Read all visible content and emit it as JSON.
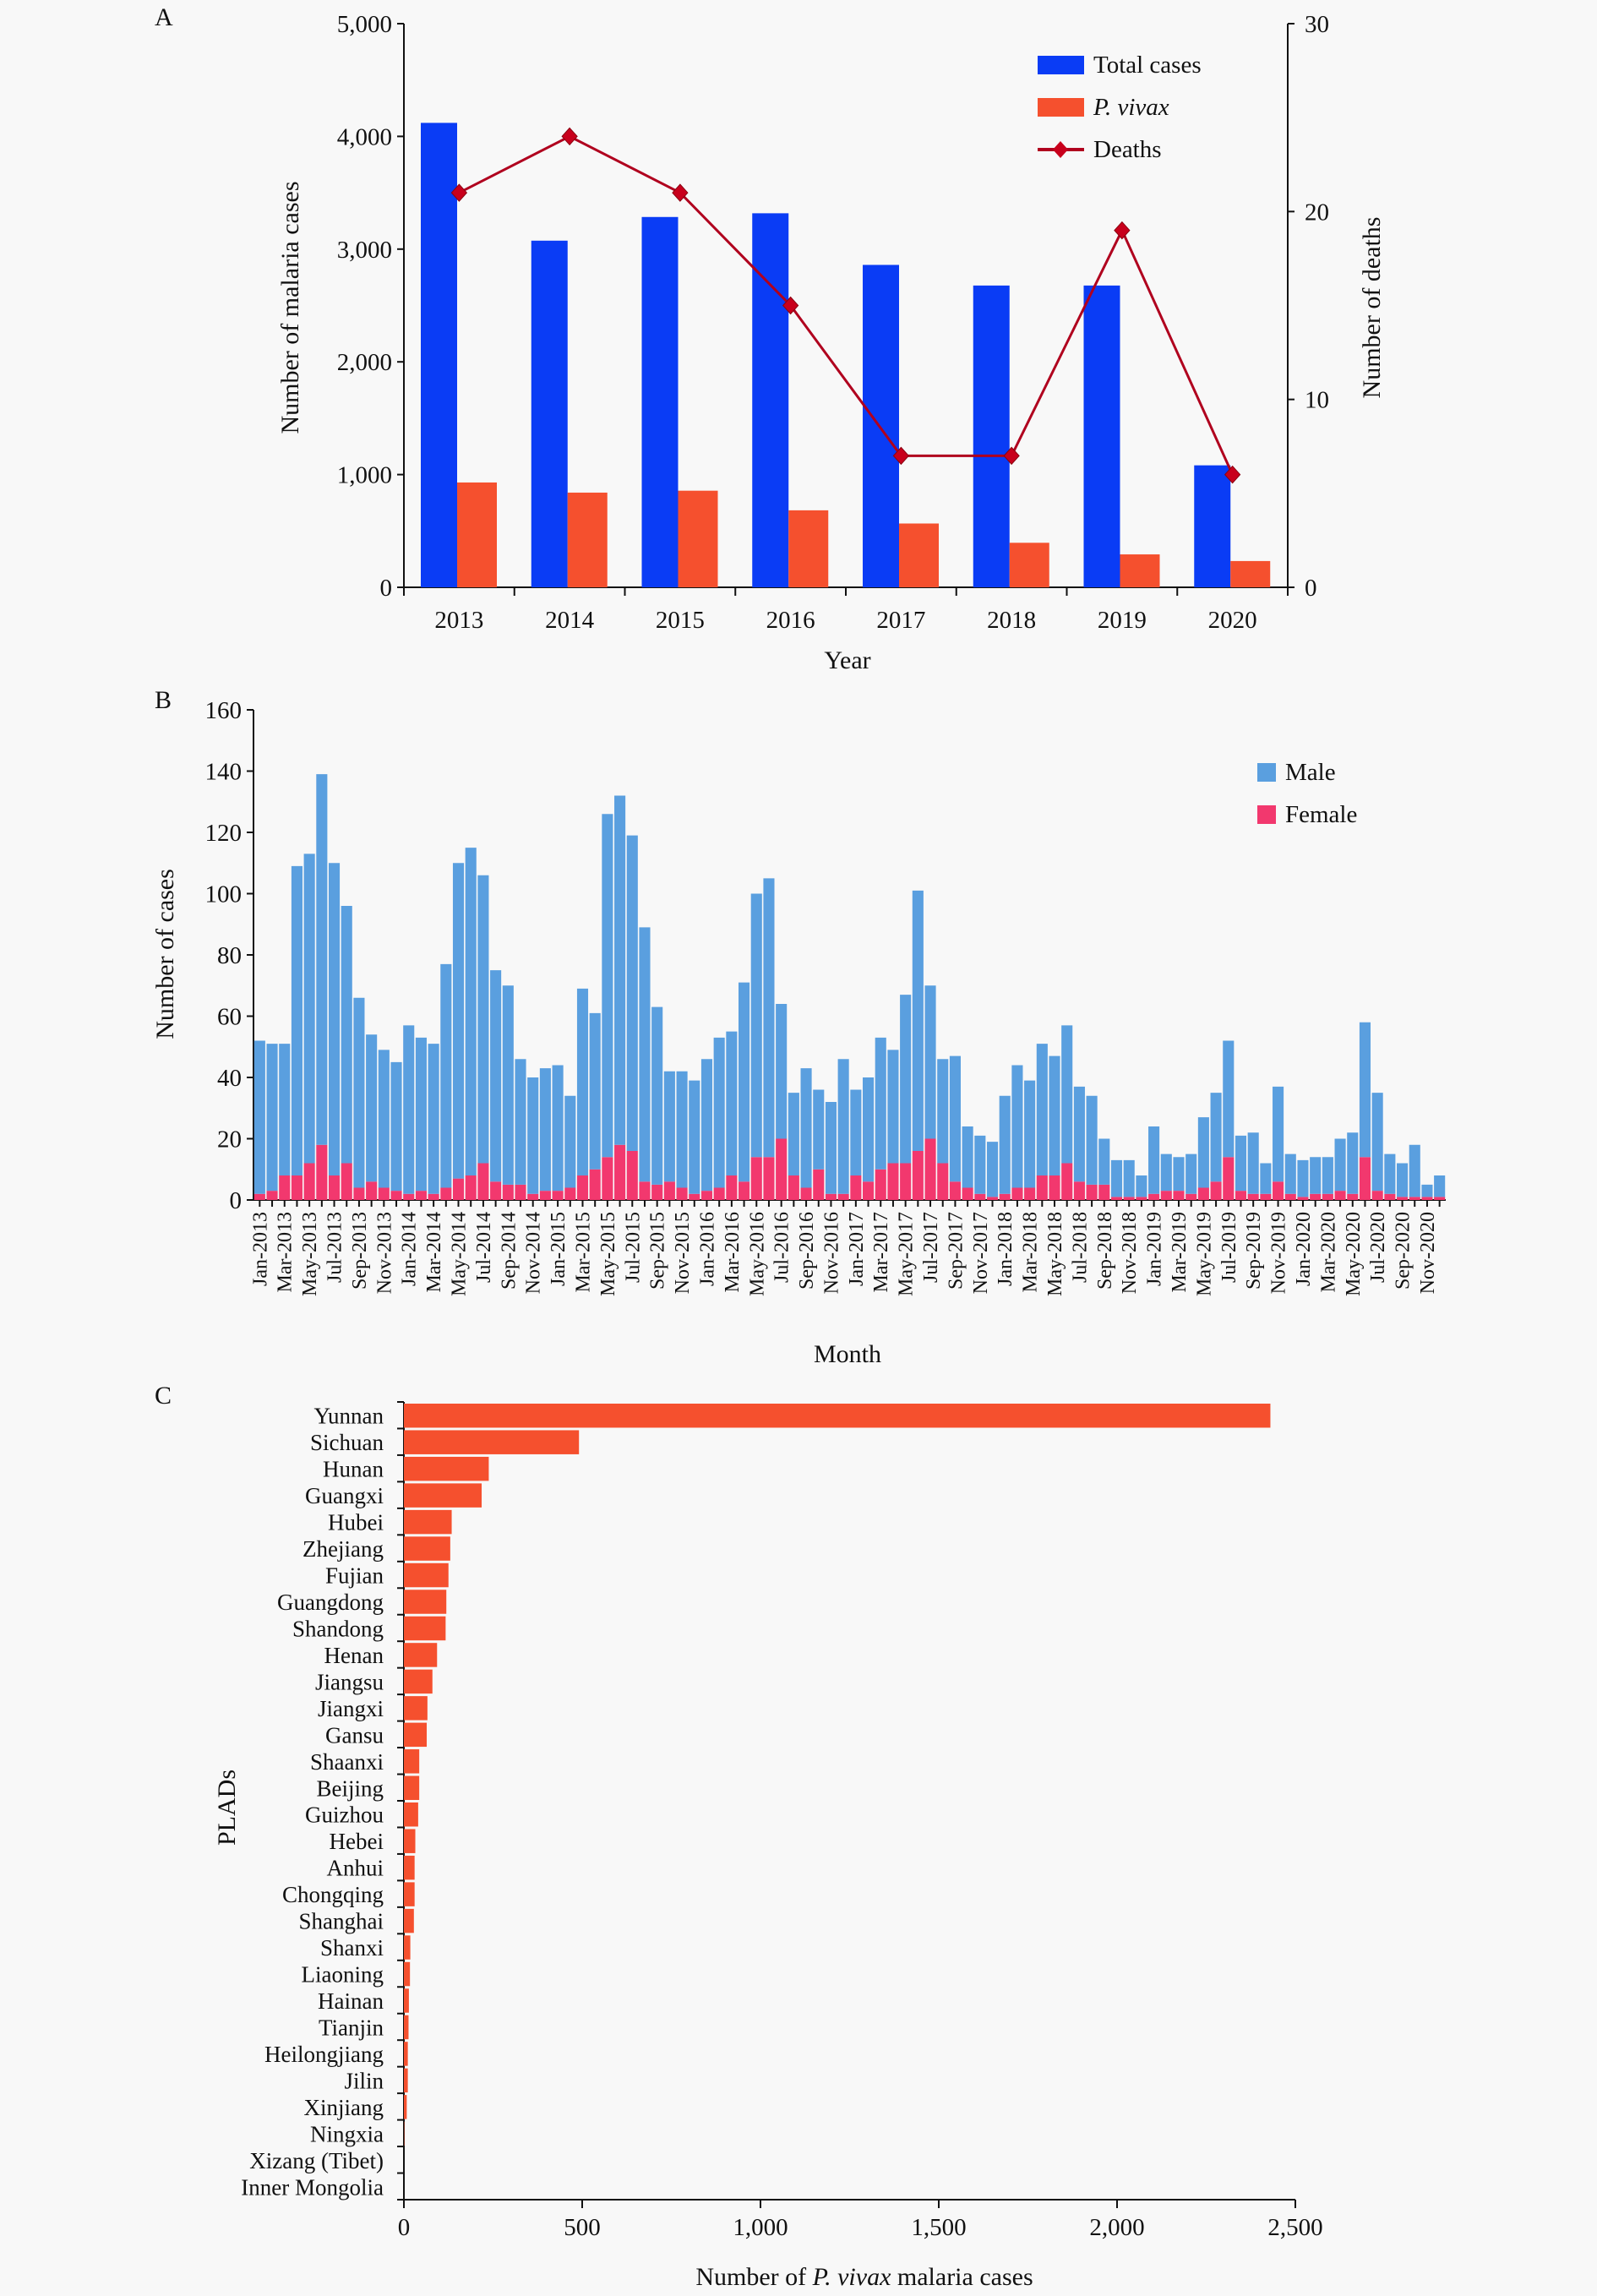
{
  "chart_data": [
    {
      "panel_label": "A",
      "type": "bar+line",
      "categories": [
        "2013",
        "2014",
        "2015",
        "2016",
        "2017",
        "2018",
        "2019",
        "2020"
      ],
      "xlabel": "Year",
      "ylabel": "Number of malaria cases",
      "ylabel_right": "Number of deaths",
      "ylim": [
        0,
        5000
      ],
      "ylim_right": [
        0,
        30
      ],
      "y_ticks": [
        "0",
        "1,000",
        "2,000",
        "3,000",
        "4,000",
        "5,000"
      ],
      "y_ticks_right": [
        "0",
        "10",
        "20",
        "30"
      ],
      "legend_position": "top-right",
      "series": [
        {
          "name": "Total cases",
          "type": "bar",
          "axis": "left",
          "color": "#0a3cf5",
          "values": [
            4120,
            3075,
            3285,
            3318,
            2860,
            2677,
            2677,
            1082
          ]
        },
        {
          "name": "P. vivax",
          "type": "bar",
          "axis": "left",
          "color": "#f5502e",
          "italic": true,
          "values": [
            930,
            840,
            857,
            683,
            566,
            395,
            292,
            233
          ]
        },
        {
          "name": "Deaths",
          "type": "line",
          "axis": "right",
          "color": "#b0001e",
          "marker": "diamond",
          "values": [
            21,
            24,
            21,
            15,
            7,
            7,
            19,
            6
          ]
        }
      ]
    },
    {
      "panel_label": "B",
      "type": "stacked-bar",
      "xlabel": "Month",
      "ylabel": "Number of cases",
      "ylim": [
        0,
        160
      ],
      "y_ticks": [
        "0",
        "20",
        "40",
        "60",
        "80",
        "100",
        "120",
        "140",
        "160"
      ],
      "x_tick_labels": [
        "Jan-2013",
        "Mar-2013",
        "May-2013",
        "Jul-2013",
        "Sep-2013",
        "Nov-2013",
        "Jan-2014",
        "Mar-2014",
        "May-2014",
        "Jul-2014",
        "Sep-2014",
        "Nov-2014",
        "Jan-2015",
        "Mar-2015",
        "May-2015",
        "Jul-2015",
        "Sep-2015",
        "Nov-2015",
        "Jan-2016",
        "Mar-2016",
        "May-2016",
        "Jul-2016",
        "Sep-2016",
        "Nov-2016",
        "Jan-2017",
        "Mar-2017",
        "May-2017",
        "Jul-2017",
        "Sep-2017",
        "Nov-2017",
        "Jan-2018",
        "Mar-2018",
        "May-2018",
        "Jul-2018",
        "Sep-2018",
        "Nov-2018",
        "Jan-2019",
        "Mar-2019",
        "May-2019",
        "Jul-2019",
        "Sep-2019",
        "Nov-2019",
        "Jan-2020",
        "Mar-2020",
        "May-2020",
        "Jul-2020",
        "Sep-2020",
        "Nov-2020"
      ],
      "legend_position": "top-right",
      "series": [
        {
          "name": "Male",
          "color": "#5a9fdf",
          "values": [
            50,
            48,
            43,
            101,
            101,
            121,
            102,
            84,
            62,
            48,
            45,
            42,
            55,
            50,
            49,
            73,
            103,
            107,
            94,
            69,
            65,
            41,
            38,
            40,
            41,
            30,
            61,
            51,
            112,
            114,
            103,
            83,
            58,
            36,
            38,
            37,
            43,
            49,
            47,
            65,
            86,
            91,
            44,
            27,
            39,
            26,
            30,
            44,
            28,
            34,
            43,
            37,
            55,
            85,
            50,
            34,
            41,
            20,
            19,
            18,
            32,
            40,
            35,
            43,
            39,
            45,
            31,
            29,
            15,
            12,
            12,
            7,
            22,
            12,
            11,
            13,
            23,
            29,
            38,
            18,
            20,
            10,
            31,
            13,
            12,
            12,
            12,
            17,
            20,
            44,
            32,
            13,
            11,
            17,
            4,
            7
          ]
        },
        {
          "name": "Female",
          "color": "#f2386e",
          "values": [
            2,
            3,
            8,
            8,
            12,
            18,
            8,
            12,
            4,
            6,
            4,
            3,
            2,
            3,
            2,
            4,
            7,
            8,
            12,
            6,
            5,
            5,
            2,
            3,
            3,
            4,
            8,
            10,
            14,
            18,
            16,
            6,
            5,
            6,
            4,
            2,
            3,
            4,
            8,
            6,
            14,
            14,
            20,
            8,
            4,
            10,
            2,
            2,
            8,
            6,
            10,
            12,
            12,
            16,
            20,
            12,
            6,
            4,
            2,
            1,
            2,
            4,
            4,
            8,
            8,
            12,
            6,
            5,
            5,
            1,
            1,
            1,
            2,
            3,
            3,
            2,
            4,
            6,
            14,
            3,
            2,
            2,
            6,
            2,
            1,
            2,
            2,
            3,
            2,
            14,
            3,
            2,
            1,
            1,
            1,
            1
          ]
        }
      ]
    },
    {
      "panel_label": "C",
      "type": "bar",
      "orientation": "horizontal",
      "xlabel_parts": [
        "Number of ",
        "P. vivax",
        " malaria cases"
      ],
      "ylabel": "PLADs",
      "xlim": [
        0,
        2500
      ],
      "x_ticks": [
        "0",
        "500",
        "1,000",
        "1,500",
        "2,000",
        "2,500"
      ],
      "color": "#f5502e",
      "categories": [
        "Yunnan",
        "Sichuan",
        "Hunan",
        "Guangxi",
        "Hubei",
        "Zhejiang",
        "Fujian",
        "Guangdong",
        "Shandong",
        "Henan",
        "Jiangsu",
        "Jiangxi",
        "Gansu",
        "Shaanxi",
        "Beijing",
        "Guizhou",
        "Hebei",
        "Anhui",
        "Chongqing",
        "Shanghai",
        "Shanxi",
        "Liaoning",
        "Hainan",
        "Tianjin",
        "Heilongjiang",
        "Jilin",
        "Xinjiang",
        "Ningxia",
        "Xizang (Tibet)",
        "Inner Mongolia"
      ],
      "values": [
        2430,
        491,
        238,
        218,
        134,
        130,
        125,
        119,
        117,
        93,
        80,
        66,
        64,
        43,
        43,
        40,
        32,
        30,
        30,
        28,
        18,
        17,
        14,
        13,
        11,
        11,
        8,
        1,
        0,
        0
      ]
    }
  ]
}
